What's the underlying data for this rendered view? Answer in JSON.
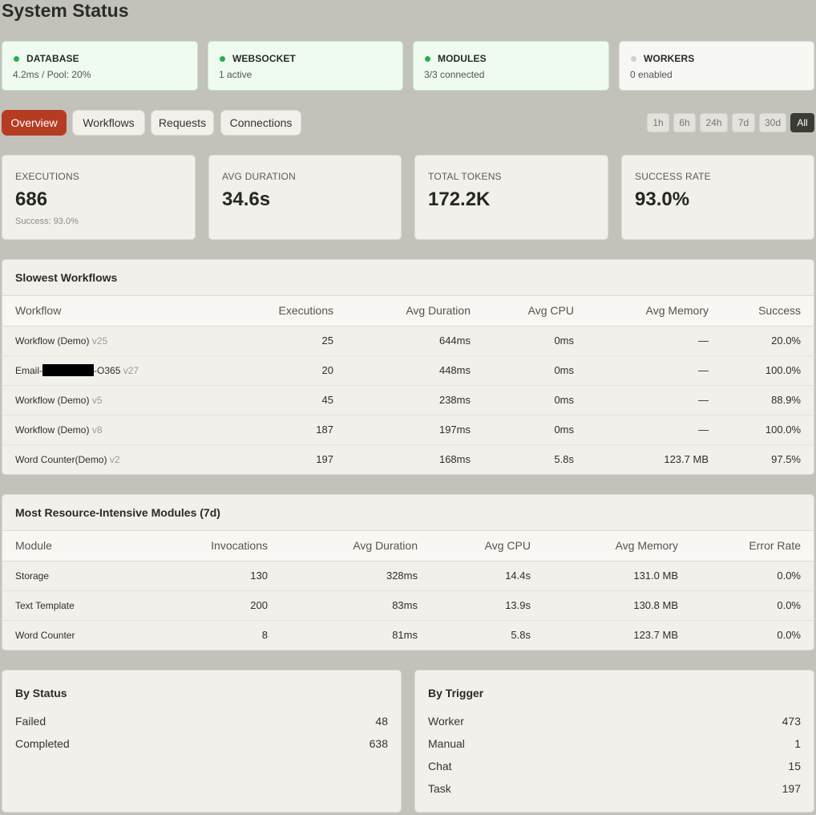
{
  "page_title": "System Status",
  "status_cards": [
    {
      "name": "DATABASE",
      "detail": "4.2ms / Pool: 20%",
      "state": "ok"
    },
    {
      "name": "WEBSOCKET",
      "detail": "1 active",
      "state": "ok"
    },
    {
      "name": "MODULES",
      "detail": "3/3 connected",
      "state": "ok"
    },
    {
      "name": "WORKERS",
      "detail": "0 enabled",
      "state": "off"
    }
  ],
  "tabs": [
    "Overview",
    "Workflows",
    "Requests",
    "Connections"
  ],
  "active_tab": "Overview",
  "time_ranges": [
    "1h",
    "6h",
    "24h",
    "7d",
    "30d",
    "All"
  ],
  "active_range": "All",
  "metrics": [
    {
      "label": "EXECUTIONS",
      "value": "686",
      "sub": "Success: 93.0%"
    },
    {
      "label": "AVG DURATION",
      "value": "34.6s",
      "sub": ""
    },
    {
      "label": "TOTAL TOKENS",
      "value": "172.2K",
      "sub": ""
    },
    {
      "label": "SUCCESS RATE",
      "value": "93.0%",
      "sub": ""
    }
  ],
  "slowest": {
    "title": "Slowest Workflows",
    "headers": [
      "Workflow",
      "Executions",
      "Avg Duration",
      "Avg CPU",
      "Avg Memory",
      "Success"
    ],
    "rows": [
      {
        "name": "Workflow (Demo)",
        "version": "v25",
        "executions": "25",
        "duration": "644ms",
        "cpu": "0ms",
        "memory": "—",
        "success": "20.0%"
      },
      {
        "name_prefix": "Email-",
        "name_suffix": "-O365",
        "version": "v27",
        "executions": "20",
        "duration": "448ms",
        "cpu": "0ms",
        "memory": "—",
        "success": "100.0%"
      },
      {
        "name": "Workflow (Demo)",
        "version": "v5",
        "executions": "45",
        "duration": "238ms",
        "cpu": "0ms",
        "memory": "—",
        "success": "88.9%"
      },
      {
        "name": "Workflow (Demo)",
        "version": "v8",
        "executions": "187",
        "duration": "197ms",
        "cpu": "0ms",
        "memory": "—",
        "success": "100.0%"
      },
      {
        "name": "Word Counter(Demo)",
        "version": "v2",
        "executions": "197",
        "duration": "168ms",
        "cpu": "5.8s",
        "memory": "123.7 MB",
        "success": "97.5%"
      }
    ]
  },
  "modules": {
    "title": "Most Resource-Intensive Modules (7d)",
    "headers": [
      "Module",
      "Invocations",
      "Avg Duration",
      "Avg CPU",
      "Avg Memory",
      "Error Rate"
    ],
    "rows": [
      {
        "name": "Storage",
        "invocations": "130",
        "duration": "328ms",
        "cpu": "14.4s",
        "memory": "131.0 MB",
        "error": "0.0%"
      },
      {
        "name": "Text Template",
        "invocations": "200",
        "duration": "83ms",
        "cpu": "13.9s",
        "memory": "130.8 MB",
        "error": "0.0%"
      },
      {
        "name": "Word Counter",
        "invocations": "8",
        "duration": "81ms",
        "cpu": "5.8s",
        "memory": "123.7 MB",
        "error": "0.0%"
      }
    ]
  },
  "by_status": {
    "title": "By Status",
    "items": [
      {
        "label": "Failed",
        "count": "48"
      },
      {
        "label": "Completed",
        "count": "638"
      }
    ]
  },
  "by_trigger": {
    "title": "By Trigger",
    "items": [
      {
        "label": "Worker",
        "count": "473"
      },
      {
        "label": "Manual",
        "count": "1"
      },
      {
        "label": "Chat",
        "count": "15"
      },
      {
        "label": "Task",
        "count": "197"
      }
    ]
  }
}
